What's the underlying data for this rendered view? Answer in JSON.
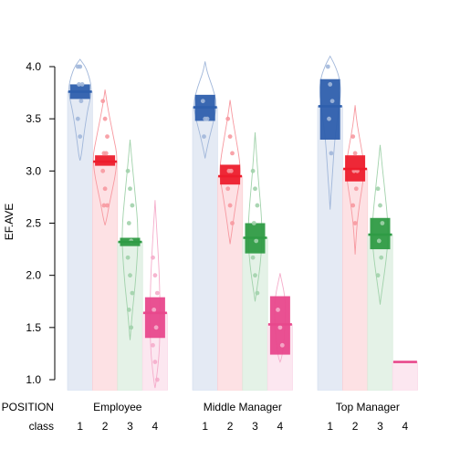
{
  "chart_data": {
    "type": "pirate",
    "ylabel": "EF.AVE",
    "ylim": [
      0.9,
      4.15
    ],
    "yticks": [
      1.0,
      1.5,
      2.0,
      2.5,
      3.0,
      3.5,
      4.0
    ],
    "ytick_labels": [
      "1.0",
      "1.5",
      "2.0",
      "2.5",
      "3.0",
      "3.5",
      "4.0"
    ],
    "row_labels": [
      "POSITION",
      "class"
    ],
    "colors": {
      "1": "#2e5fad",
      "2": "#ed1c2c",
      "3": "#2f9b45",
      "4": "#e8488c"
    },
    "groups": [
      {
        "name": "Employee",
        "classes": [
          {
            "label": "1",
            "mean": 3.76,
            "lower": 3.69,
            "upper": 3.83,
            "violin": [
              [
                4.07,
                0
              ],
              [
                4.0,
                0.42
              ],
              [
                3.9,
                0.72
              ],
              [
                3.8,
                0.9
              ],
              [
                3.7,
                0.82
              ],
              [
                3.6,
                0.62
              ],
              [
                3.45,
                0.42
              ],
              [
                3.3,
                0.25
              ],
              [
                3.15,
                0.1
              ],
              [
                3.1,
                0
              ]
            ],
            "points": [
              4.0,
              4.0,
              3.83,
              3.83,
              3.67,
              3.5,
              3.33
            ]
          },
          {
            "label": "2",
            "mean": 3.09,
            "lower": 3.05,
            "upper": 3.15,
            "violin": [
              [
                3.78,
                0
              ],
              [
                3.65,
                0.15
              ],
              [
                3.5,
                0.38
              ],
              [
                3.3,
                0.7
              ],
              [
                3.15,
                0.95
              ],
              [
                3.0,
                0.86
              ],
              [
                2.85,
                0.62
              ],
              [
                2.7,
                0.36
              ],
              [
                2.55,
                0.14
              ],
              [
                2.48,
                0
              ]
            ],
            "points": [
              3.67,
              3.5,
              3.33,
              3.17,
              3.17,
              3.0,
              2.83,
              2.67,
              2.67
            ]
          },
          {
            "label": "3",
            "mean": 2.32,
            "lower": 2.28,
            "upper": 2.36,
            "violin": [
              [
                3.3,
                0
              ],
              [
                3.1,
                0.14
              ],
              [
                2.9,
                0.3
              ],
              [
                2.7,
                0.46
              ],
              [
                2.5,
                0.6
              ],
              [
                2.3,
                0.62
              ],
              [
                2.1,
                0.52
              ],
              [
                1.9,
                0.4
              ],
              [
                1.7,
                0.22
              ],
              [
                1.5,
                0.08
              ],
              [
                1.38,
                0
              ]
            ],
            "points": [
              3.0,
              2.83,
              2.67,
              2.5,
              2.33,
              2.17,
              2.0,
              1.83,
              1.67,
              1.5
            ]
          },
          {
            "label": "4",
            "mean": 1.64,
            "lower": 1.4,
            "upper": 1.79,
            "violin": [
              [
                2.72,
                0
              ],
              [
                2.5,
                0.1
              ],
              [
                2.2,
                0.25
              ],
              [
                1.9,
                0.36
              ],
              [
                1.6,
                0.4
              ],
              [
                1.3,
                0.35
              ],
              [
                1.1,
                0.2
              ],
              [
                0.95,
                0.05
              ],
              [
                0.92,
                0
              ]
            ],
            "points": [
              2.17,
              2.0,
              1.83,
              1.67,
              1.5,
              1.33,
              1.17,
              1.0
            ]
          }
        ]
      },
      {
        "name": "Middle Manager",
        "classes": [
          {
            "label": "1",
            "mean": 3.61,
            "lower": 3.48,
            "upper": 3.73,
            "violin": [
              [
                4.05,
                0
              ],
              [
                3.95,
                0.15
              ],
              [
                3.8,
                0.6
              ],
              [
                3.65,
                0.92
              ],
              [
                3.5,
                0.72
              ],
              [
                3.35,
                0.4
              ],
              [
                3.2,
                0.12
              ],
              [
                3.12,
                0
              ]
            ],
            "points": [
              3.67,
              3.5,
              3.5,
              3.33
            ]
          },
          {
            "label": "2",
            "mean": 2.95,
            "lower": 2.87,
            "upper": 3.06,
            "violin": [
              [
                3.68,
                0
              ],
              [
                3.5,
                0.2
              ],
              [
                3.3,
                0.48
              ],
              [
                3.1,
                0.75
              ],
              [
                2.95,
                0.82
              ],
              [
                2.8,
                0.6
              ],
              [
                2.6,
                0.34
              ],
              [
                2.4,
                0.12
              ],
              [
                2.3,
                0
              ]
            ],
            "points": [
              3.5,
              3.33,
              3.17,
              3.0,
              3.0,
              2.83,
              2.67,
              2.5
            ]
          },
          {
            "label": "3",
            "mean": 2.36,
            "lower": 2.21,
            "upper": 2.5,
            "violin": [
              [
                3.37,
                0
              ],
              [
                3.1,
                0.14
              ],
              [
                2.85,
                0.3
              ],
              [
                2.6,
                0.48
              ],
              [
                2.4,
                0.55
              ],
              [
                2.2,
                0.48
              ],
              [
                2.0,
                0.3
              ],
              [
                1.85,
                0.12
              ],
              [
                1.75,
                0
              ]
            ],
            "points": [
              3.0,
              2.83,
              2.67,
              2.5,
              2.33,
              2.17,
              2.0,
              1.83
            ]
          },
          {
            "label": "4",
            "mean": 1.53,
            "lower": 1.24,
            "upper": 1.8,
            "violin": [
              [
                2.02,
                0
              ],
              [
                1.95,
                0.12
              ],
              [
                1.85,
                0.3
              ],
              [
                1.7,
                0.45
              ],
              [
                1.5,
                0.38
              ],
              [
                1.3,
                0.25
              ],
              [
                1.2,
                0.1
              ],
              [
                1.17,
                0
              ]
            ],
            "points": [
              1.67,
              1.5,
              1.33
            ]
          }
        ]
      },
      {
        "name": "Top Manager",
        "classes": [
          {
            "label": "1",
            "mean": 3.62,
            "lower": 3.3,
            "upper": 3.88,
            "violin": [
              [
                4.1,
                0
              ],
              [
                4.02,
                0.35
              ],
              [
                3.9,
                0.72
              ],
              [
                3.75,
                0.85
              ],
              [
                3.55,
                0.62
              ],
              [
                3.3,
                0.36
              ],
              [
                3.0,
                0.2
              ],
              [
                2.8,
                0.08
              ],
              [
                2.63,
                0
              ]
            ],
            "points": [
              4.0,
              3.83,
              3.67,
              3.5,
              3.17
            ]
          },
          {
            "label": "2",
            "mean": 3.02,
            "lower": 2.9,
            "upper": 3.15,
            "violin": [
              [
                3.63,
                0
              ],
              [
                3.45,
                0.15
              ],
              [
                3.25,
                0.45
              ],
              [
                3.05,
                0.72
              ],
              [
                2.9,
                0.62
              ],
              [
                2.7,
                0.36
              ],
              [
                2.5,
                0.15
              ],
              [
                2.3,
                0.05
              ],
              [
                2.2,
                0
              ]
            ],
            "points": [
              3.33,
              3.17,
              3.0,
              3.0,
              2.83,
              2.67,
              2.5
            ]
          },
          {
            "label": "3",
            "mean": 2.39,
            "lower": 2.25,
            "upper": 2.55,
            "violin": [
              [
                3.25,
                0
              ],
              [
                3.0,
                0.2
              ],
              [
                2.8,
                0.38
              ],
              [
                2.55,
                0.58
              ],
              [
                2.35,
                0.62
              ],
              [
                2.15,
                0.48
              ],
              [
                1.95,
                0.25
              ],
              [
                1.78,
                0.06
              ],
              [
                1.72,
                0
              ]
            ],
            "points": [
              2.83,
              2.67,
              2.5,
              2.33,
              2.17,
              2.0
            ]
          },
          {
            "label": "4",
            "mean": 1.17,
            "lower": 1.17,
            "upper": 1.17,
            "violin": [],
            "points": []
          }
        ]
      }
    ]
  }
}
